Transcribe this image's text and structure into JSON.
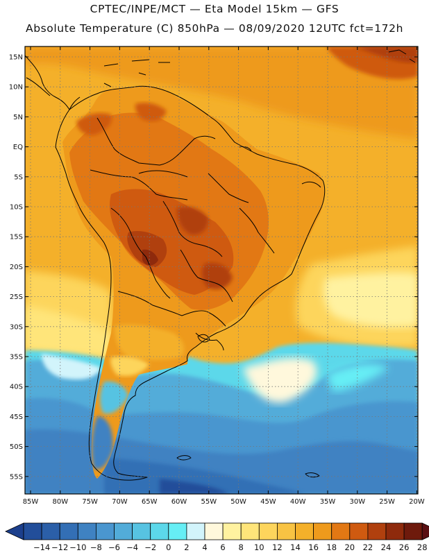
{
  "header": {
    "line1": "CPTEC/INPE/MCT —  Eta Model 15km — GFS",
    "line2": "Absolute Temperature (C) 850hPa — 08/09/2020 12UTC fct=172h"
  },
  "axes": {
    "lat_labels": [
      "15N",
      "10N",
      "5N",
      "EQ",
      "5S",
      "10S",
      "15S",
      "20S",
      "25S",
      "30S",
      "35S",
      "40S",
      "45S",
      "50S",
      "55S"
    ],
    "lon_labels": [
      "85W",
      "80W",
      "75W",
      "70W",
      "65W",
      "60W",
      "55W",
      "50W",
      "45W",
      "40W",
      "35W",
      "30W",
      "25W",
      "20W"
    ]
  },
  "colorbar": {
    "labels": [
      "-14",
      "-12",
      "-10",
      "-8",
      "-6",
      "-4",
      "-2",
      "0",
      "2",
      "4",
      "6",
      "8",
      "10",
      "12",
      "14",
      "16",
      "18",
      "20",
      "22",
      "24",
      "26",
      "28"
    ],
    "colors": [
      "#1c3f8c",
      "#224e9a",
      "#2b5fa8",
      "#336fb5",
      "#3f82c2",
      "#4a96cf",
      "#52acd9",
      "#57c3e2",
      "#5cd8ea",
      "#66eef5",
      "#d2f4fb",
      "#fff8dc",
      "#fff2a0",
      "#ffe57a",
      "#fdd55c",
      "#f8c343",
      "#f4b02a",
      "#ee9a1c",
      "#e27814",
      "#cf5a10",
      "#b0400e",
      "#8e2a0c",
      "#6e1a0c",
      "#5a0f12"
    ]
  }
}
